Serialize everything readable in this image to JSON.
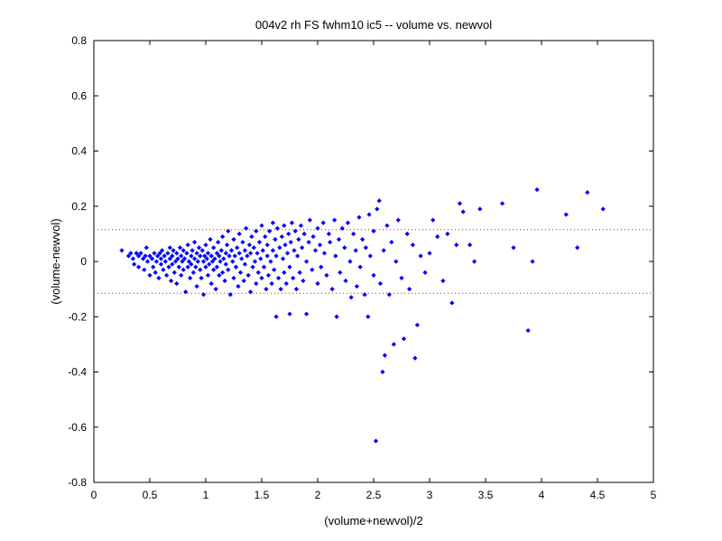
{
  "chart_data": {
    "type": "scatter",
    "title": "004v2 rh FS fwhm10 ic5 -- volume vs. newvol",
    "xlabel": "(volume+newvol)/2",
    "ylabel": "(volume-newvol)",
    "xlim": [
      0,
      5
    ],
    "ylim": [
      -0.8,
      0.8
    ],
    "x_ticks": [
      "0",
      "0.5",
      "1",
      "1.5",
      "2",
      "2.5",
      "3",
      "3.5",
      "4",
      "4.5",
      "5"
    ],
    "y_ticks": [
      "-0.8",
      "-0.6",
      "-0.4",
      "-0.2",
      "0",
      "0.2",
      "0.4",
      "0.6",
      "0.8"
    ],
    "grid": false,
    "marker_color": "#0000ff",
    "reference_line_color": "#ff0000",
    "reference_lines": [
      0.115,
      -0.115
    ],
    "series": [
      {
        "points": [
          [
            0.25,
            0.04
          ],
          [
            0.31,
            0.02
          ],
          [
            0.33,
            0.03
          ],
          [
            0.35,
            0.01
          ],
          [
            0.36,
            -0.01
          ],
          [
            0.38,
            0.03
          ],
          [
            0.4,
            0.02
          ],
          [
            0.4,
            -0.02
          ],
          [
            0.42,
            0.03
          ],
          [
            0.44,
            0.01
          ],
          [
            0.45,
            -0.03
          ],
          [
            0.46,
            0.02
          ],
          [
            0.47,
            0.05
          ],
          [
            0.48,
            0.0
          ],
          [
            0.5,
            -0.05
          ],
          [
            0.5,
            0.02
          ],
          [
            0.52,
            0.01
          ],
          [
            0.53,
            -0.02
          ],
          [
            0.54,
            0.03
          ],
          [
            0.55,
            -0.04
          ],
          [
            0.56,
            0.0
          ],
          [
            0.57,
            0.02
          ],
          [
            0.58,
            -0.06
          ],
          [
            0.59,
            0.03
          ],
          [
            0.6,
            -0.01
          ],
          [
            0.6,
            0.01
          ],
          [
            0.61,
            0.04
          ],
          [
            0.62,
            -0.03
          ],
          [
            0.63,
            0.02
          ],
          [
            0.64,
            0.0
          ],
          [
            0.65,
            -0.05
          ],
          [
            0.66,
            0.03
          ],
          [
            0.67,
            -0.02
          ],
          [
            0.68,
            0.01
          ],
          [
            0.68,
            0.05
          ],
          [
            0.69,
            -0.07
          ],
          [
            0.7,
            0.02
          ],
          [
            0.7,
            -0.01
          ],
          [
            0.71,
            0.04
          ],
          [
            0.72,
            -0.04
          ],
          [
            0.73,
            0.0
          ],
          [
            0.74,
            0.03
          ],
          [
            0.74,
            -0.08
          ],
          [
            0.75,
            0.01
          ],
          [
            0.76,
            -0.02
          ],
          [
            0.77,
            0.05
          ],
          [
            0.78,
            -0.05
          ],
          [
            0.78,
            0.02
          ],
          [
            0.79,
            0.0
          ],
          [
            0.8,
            -0.03
          ],
          [
            0.8,
            0.04
          ],
          [
            0.81,
            0.01
          ],
          [
            0.82,
            -0.11
          ],
          [
            0.83,
            0.03
          ],
          [
            0.84,
            -0.02
          ],
          [
            0.84,
            0.06
          ],
          [
            0.85,
            0.0
          ],
          [
            0.86,
            -0.06
          ],
          [
            0.87,
            0.02
          ],
          [
            0.87,
            -0.01
          ],
          [
            0.88,
            0.04
          ],
          [
            0.89,
            -0.04
          ],
          [
            0.9,
            0.01
          ],
          [
            0.9,
            0.07
          ],
          [
            0.91,
            -0.02
          ],
          [
            0.92,
            0.03
          ],
          [
            0.92,
            -0.09
          ],
          [
            0.93,
            0.0
          ],
          [
            0.94,
            0.05
          ],
          [
            0.95,
            -0.03
          ],
          [
            0.95,
            0.02
          ],
          [
            0.96,
            -0.06
          ],
          [
            0.97,
            0.04
          ],
          [
            0.98,
            0.0
          ],
          [
            0.98,
            -0.12
          ],
          [
            0.99,
            0.02
          ],
          [
            1.0,
            -0.02
          ],
          [
            1.0,
            0.06
          ],
          [
            1.01,
            0.01
          ],
          [
            1.02,
            -0.05
          ],
          [
            1.02,
            0.03
          ],
          [
            1.03,
            -0.01
          ],
          [
            1.04,
            0.08
          ],
          [
            1.05,
            -0.08
          ],
          [
            1.05,
            0.02
          ],
          [
            1.06,
            0.0
          ],
          [
            1.07,
            -0.03
          ],
          [
            1.07,
            0.05
          ],
          [
            1.08,
            0.01
          ],
          [
            1.09,
            -0.1
          ],
          [
            1.1,
            0.03
          ],
          [
            1.1,
            -0.02
          ],
          [
            1.11,
            0.07
          ],
          [
            1.12,
            -0.05
          ],
          [
            1.12,
            0.02
          ],
          [
            1.13,
            0.0
          ],
          [
            1.14,
            0.04
          ],
          [
            1.15,
            -0.04
          ],
          [
            1.15,
            0.09
          ],
          [
            1.16,
            0.01
          ],
          [
            1.17,
            -0.07
          ],
          [
            1.18,
            0.03
          ],
          [
            1.18,
            -0.01
          ],
          [
            1.19,
            0.06
          ],
          [
            1.2,
            -0.03
          ],
          [
            1.2,
            0.11
          ],
          [
            1.21,
            0.02
          ],
          [
            1.22,
            -0.12
          ],
          [
            1.23,
            0.04
          ],
          [
            1.24,
            0.0
          ],
          [
            1.25,
            -0.06
          ],
          [
            1.25,
            0.08
          ],
          [
            1.26,
            0.02
          ],
          [
            1.27,
            -0.02
          ],
          [
            1.28,
            0.05
          ],
          [
            1.29,
            -0.09
          ],
          [
            1.3,
            0.03
          ],
          [
            1.3,
            0.1
          ],
          [
            1.31,
            -0.04
          ],
          [
            1.32,
            0.01
          ],
          [
            1.33,
            0.07
          ],
          [
            1.34,
            -0.07
          ],
          [
            1.35,
            0.04
          ],
          [
            1.35,
            -0.01
          ],
          [
            1.36,
            0.12
          ],
          [
            1.37,
            0.02
          ],
          [
            1.38,
            -0.05
          ],
          [
            1.39,
            0.06
          ],
          [
            1.4,
            -0.11
          ],
          [
            1.4,
            0.03
          ],
          [
            1.41,
            0.09
          ],
          [
            1.42,
            -0.02
          ],
          [
            1.43,
            0.05
          ],
          [
            1.44,
            0.0
          ],
          [
            1.45,
            -0.08
          ],
          [
            1.45,
            0.11
          ],
          [
            1.46,
            0.03
          ],
          [
            1.47,
            -0.04
          ],
          [
            1.48,
            0.07
          ],
          [
            1.49,
            0.01
          ],
          [
            1.5,
            -0.06
          ],
          [
            1.5,
            0.13
          ],
          [
            1.51,
            0.04
          ],
          [
            1.52,
            -0.02
          ],
          [
            1.53,
            0.09
          ],
          [
            1.54,
            -0.1
          ],
          [
            1.55,
            0.02
          ],
          [
            1.55,
            0.06
          ],
          [
            1.56,
            -0.05
          ],
          [
            1.57,
            0.11
          ],
          [
            1.58,
            0.0
          ],
          [
            1.59,
            -0.08
          ],
          [
            1.6,
            0.04
          ],
          [
            1.6,
            0.14
          ],
          [
            1.61,
            -0.03
          ],
          [
            1.62,
            0.08
          ],
          [
            1.63,
            -0.2
          ],
          [
            1.63,
            0.02
          ],
          [
            1.64,
            0.12
          ],
          [
            1.65,
            -0.06
          ],
          [
            1.66,
            0.05
          ],
          [
            1.67,
            -0.1
          ],
          [
            1.68,
            0.09
          ],
          [
            1.69,
            0.01
          ],
          [
            1.7,
            -0.04
          ],
          [
            1.7,
            0.13
          ],
          [
            1.71,
            0.06
          ],
          [
            1.72,
            -0.08
          ],
          [
            1.73,
            0.03
          ],
          [
            1.74,
            0.1
          ],
          [
            1.75,
            -0.19
          ],
          [
            1.75,
            -0.02
          ],
          [
            1.76,
            0.07
          ],
          [
            1.77,
            0.14
          ],
          [
            1.78,
            -0.06
          ],
          [
            1.79,
            0.04
          ],
          [
            1.8,
            0.11
          ],
          [
            1.81,
            -0.1
          ],
          [
            1.82,
            0.02
          ],
          [
            1.83,
            0.08
          ],
          [
            1.84,
            -0.04
          ],
          [
            1.85,
            0.13
          ],
          [
            1.86,
            0.05
          ],
          [
            1.87,
            -0.07
          ],
          [
            1.88,
            0.1
          ],
          [
            1.9,
            0.0
          ],
          [
            1.9,
            -0.19
          ],
          [
            1.92,
            0.07
          ],
          [
            1.93,
            0.15
          ],
          [
            1.95,
            -0.03
          ],
          [
            1.96,
            0.09
          ],
          [
            1.98,
            0.04
          ],
          [
            2.0,
            -0.08
          ],
          [
            2.0,
            0.12
          ],
          [
            2.02,
            0.06
          ],
          [
            2.03,
            -0.02
          ],
          [
            2.05,
            0.14
          ],
          [
            2.06,
            0.03
          ],
          [
            2.08,
            -0.05
          ],
          [
            2.1,
            0.1
          ],
          [
            2.11,
            0.07
          ],
          [
            2.13,
            -0.1
          ],
          [
            2.15,
            0.15
          ],
          [
            2.16,
            0.02
          ],
          [
            2.17,
            -0.2
          ],
          [
            2.19,
            0.08
          ],
          [
            2.2,
            -0.04
          ],
          [
            2.22,
            0.12
          ],
          [
            2.24,
            0.05
          ],
          [
            2.25,
            -0.07
          ],
          [
            2.27,
            0.14
          ],
          [
            2.29,
            0.0
          ],
          [
            2.3,
            -0.13
          ],
          [
            2.32,
            0.1
          ],
          [
            2.34,
            0.04
          ],
          [
            2.35,
            -0.09
          ],
          [
            2.37,
            0.16
          ],
          [
            2.38,
            -0.02
          ],
          [
            2.4,
            0.08
          ],
          [
            2.42,
            -0.12
          ],
          [
            2.43,
            0.05
          ],
          [
            2.45,
            -0.2
          ],
          [
            2.46,
            0.17
          ],
          [
            2.47,
            0.02
          ],
          [
            2.5,
            -0.05
          ],
          [
            2.5,
            0.11
          ],
          [
            2.52,
            -0.65
          ],
          [
            2.53,
            0.19
          ],
          [
            2.55,
            0.22
          ],
          [
            2.56,
            -0.08
          ],
          [
            2.58,
            -0.4
          ],
          [
            2.59,
            0.04
          ],
          [
            2.6,
            -0.34
          ],
          [
            2.62,
            0.13
          ],
          [
            2.64,
            -0.12
          ],
          [
            2.66,
            0.07
          ],
          [
            2.68,
            -0.3
          ],
          [
            2.7,
            0.0
          ],
          [
            2.72,
            0.15
          ],
          [
            2.75,
            -0.06
          ],
          [
            2.77,
            -0.28
          ],
          [
            2.8,
            0.1
          ],
          [
            2.82,
            -0.1
          ],
          [
            2.85,
            0.06
          ],
          [
            2.87,
            -0.35
          ],
          [
            2.89,
            -0.23
          ],
          [
            2.92,
            0.02
          ],
          [
            2.96,
            -0.04
          ],
          [
            3.0,
            0.03
          ],
          [
            3.03,
            0.15
          ],
          [
            3.07,
            0.09
          ],
          [
            3.12,
            -0.07
          ],
          [
            3.16,
            0.1
          ],
          [
            3.2,
            -0.15
          ],
          [
            3.24,
            0.06
          ],
          [
            3.27,
            0.21
          ],
          [
            3.3,
            0.18
          ],
          [
            3.36,
            0.06
          ],
          [
            3.4,
            0.0
          ],
          [
            3.45,
            0.19
          ],
          [
            3.65,
            0.21
          ],
          [
            3.75,
            0.05
          ],
          [
            3.88,
            -0.25
          ],
          [
            3.92,
            0.0
          ],
          [
            3.96,
            0.26
          ],
          [
            4.22,
            0.17
          ],
          [
            4.32,
            0.05
          ],
          [
            4.41,
            0.25
          ],
          [
            4.55,
            0.19
          ]
        ]
      }
    ]
  }
}
